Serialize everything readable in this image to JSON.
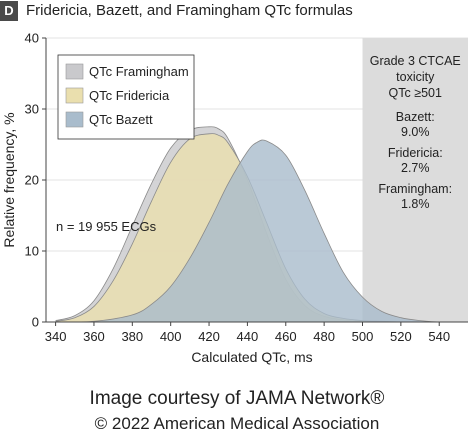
{
  "panel": {
    "letter": "D",
    "title": "Fridericia, Bazett, and Framingham QTc formulas"
  },
  "chart_data": {
    "type": "area",
    "xlabel": "Calculated QTc, ms",
    "ylabel": "Relative frequency, %",
    "xlim": [
      335,
      555
    ],
    "ylim": [
      0,
      40
    ],
    "x_ticks": [
      "340",
      "360",
      "380",
      "400",
      "420",
      "440",
      "460",
      "480",
      "500",
      "520",
      "540"
    ],
    "y_ticks": [
      "0",
      "10",
      "20",
      "30",
      "40"
    ],
    "grid": true,
    "legend_position": "top-left",
    "series": [
      {
        "name": "QTc Framingham",
        "color": "#c9c9cc",
        "x": [
          340,
          350,
          360,
          370,
          380,
          390,
          400,
          410,
          420,
          425,
          430,
          440,
          450,
          460,
          470,
          480,
          490,
          500,
          510
        ],
        "values": [
          0.2,
          0.9,
          3,
          7.5,
          13.5,
          19.5,
          24.5,
          27,
          27.5,
          27.2,
          25.8,
          20,
          12.5,
          6,
          2.3,
          0.8,
          0.3,
          0.1,
          0
        ]
      },
      {
        "name": "QTc Fridericia",
        "color": "#eadfae",
        "x": [
          340,
          350,
          360,
          370,
          380,
          390,
          400,
          410,
          420,
          425,
          430,
          440,
          450,
          460,
          470,
          480,
          490,
          500,
          510,
          520
        ],
        "values": [
          0.1,
          0.6,
          2.2,
          5.8,
          11,
          17,
          22.5,
          25.8,
          26.5,
          26.3,
          25.2,
          20.5,
          14,
          7.5,
          3.2,
          1.2,
          0.5,
          0.2,
          0.1,
          0
        ]
      },
      {
        "name": "QTc Bazett",
        "color": "#a9bccc",
        "x": [
          340,
          360,
          380,
          390,
          400,
          410,
          420,
          430,
          440,
          445,
          450,
          460,
          470,
          480,
          490,
          500,
          510,
          520,
          530,
          540
        ],
        "values": [
          0,
          0.1,
          1,
          2.5,
          5,
          9,
          14,
          19.5,
          24,
          25.3,
          25.5,
          23.5,
          18.5,
          12.5,
          7,
          3.5,
          1.5,
          0.6,
          0.2,
          0
        ]
      }
    ],
    "annotations": {
      "n_label": "n = 19 955 ECGs",
      "toxicity_band": {
        "x_start": 500,
        "x_end": 555,
        "color": "#dcdcdc",
        "title": [
          "Grade 3 CTCAE",
          "toxicity",
          "QTc ≥501"
        ],
        "items": [
          {
            "label": "Bazett:",
            "value": "9.0%"
          },
          {
            "label": "Fridericia:",
            "value": "2.7%"
          },
          {
            "label": "Framingham:",
            "value": "1.8%"
          }
        ]
      }
    }
  },
  "credit": {
    "line1": "Image courtesy of JAMA Network®",
    "line2": "© 2022 American Medical Association"
  }
}
